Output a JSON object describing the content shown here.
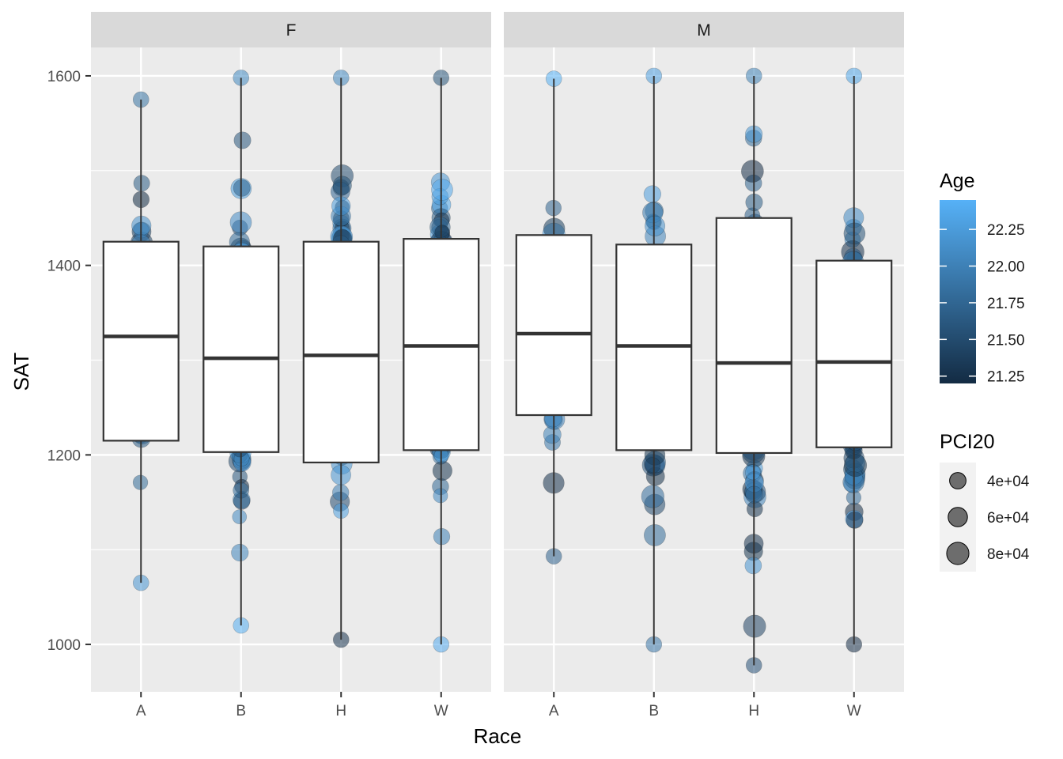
{
  "chart_data": {
    "type": "box",
    "facet_labels": [
      "F",
      "M"
    ],
    "xlabel": "Race",
    "ylabel": "SAT",
    "categories": [
      "A",
      "B",
      "H",
      "W"
    ],
    "ylim": [
      950,
      1630
    ],
    "yticks": [
      1000,
      1200,
      1400,
      1600
    ],
    "grid": true,
    "legend_position": "right",
    "point_color_low": "#132B43",
    "point_color_high": "#56B1F7",
    "panel_background": "#EBEBEB",
    "strip_background": "#D9D9D9",
    "boxes": [
      {
        "facet": "F",
        "race": "A",
        "q1": 1215,
        "median": 1325,
        "q3": 1425,
        "whisker_low": 1065,
        "whisker_high": 1575
      },
      {
        "facet": "F",
        "race": "B",
        "q1": 1203,
        "median": 1302,
        "q3": 1420,
        "whisker_low": 1020,
        "whisker_high": 1598
      },
      {
        "facet": "F",
        "race": "H",
        "q1": 1192,
        "median": 1305,
        "q3": 1425,
        "whisker_low": 1005,
        "whisker_high": 1598
      },
      {
        "facet": "F",
        "race": "W",
        "q1": 1205,
        "median": 1315,
        "q3": 1428,
        "whisker_low": 1000,
        "whisker_high": 1598
      },
      {
        "facet": "M",
        "race": "A",
        "q1": 1242,
        "median": 1328,
        "q3": 1432,
        "whisker_low": 1093,
        "whisker_high": 1597
      },
      {
        "facet": "M",
        "race": "B",
        "q1": 1205,
        "median": 1315,
        "q3": 1422,
        "whisker_low": 1000,
        "whisker_high": 1600
      },
      {
        "facet": "M",
        "race": "H",
        "q1": 1202,
        "median": 1297,
        "q3": 1450,
        "whisker_low": 978,
        "whisker_high": 1600
      },
      {
        "facet": "M",
        "race": "W",
        "q1": 1208,
        "median": 1298,
        "q3": 1405,
        "whisker_low": 1000,
        "whisker_high": 1600
      }
    ],
    "legend_age": {
      "title": "Age",
      "min": 21.2,
      "max": 22.45,
      "breaks": [
        21.25,
        21.5,
        21.75,
        22.0,
        22.25
      ],
      "labels": [
        "21.25",
        "21.50",
        "21.75",
        "22.00",
        "22.25"
      ]
    },
    "legend_pci": {
      "title": "PCI20",
      "breaks": [
        40000,
        60000,
        80000
      ],
      "labels": [
        "4e+04",
        "6e+04",
        "8e+04"
      ]
    }
  }
}
